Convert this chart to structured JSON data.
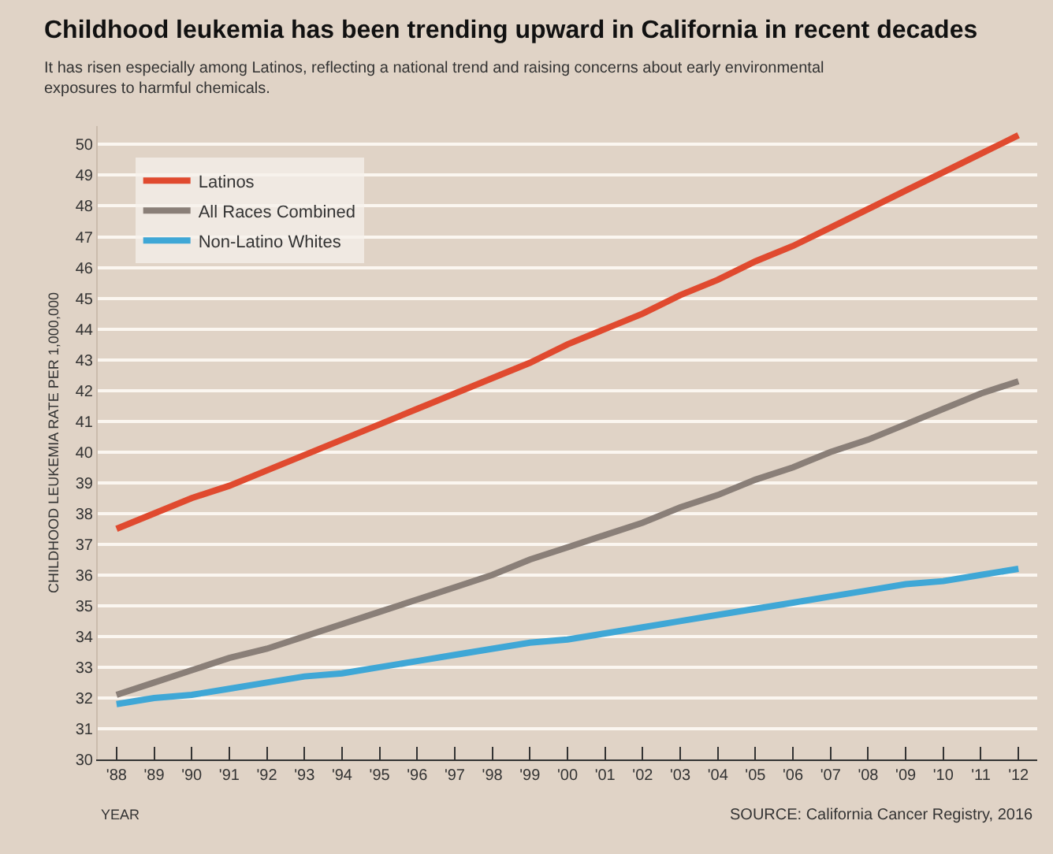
{
  "chart_data": {
    "type": "line",
    "title": "Childhood leukemia has been trending upward in California in recent decades",
    "subtitle": "It has risen especially among Latinos, reflecting a national trend and raising concerns about early environmental exposures to harmful chemicals.",
    "xlabel": "YEAR",
    "ylabel": "CHILDHOOD LEUKEMIA RATE PER 1,000,000",
    "annotations": [
      "SOURCE: California Cancer Registry, 2016"
    ],
    "x": [
      1988,
      1989,
      1990,
      1991,
      1992,
      1993,
      1994,
      1995,
      1996,
      1997,
      1998,
      1999,
      2000,
      2001,
      2002,
      2003,
      2004,
      2005,
      2006,
      2007,
      2008,
      2009,
      2010,
      2011,
      2012
    ],
    "series": [
      {
        "name": "Latinos",
        "color": "#e04a2f",
        "values": [
          37.5,
          38.0,
          38.5,
          38.9,
          39.4,
          39.9,
          40.4,
          40.9,
          41.4,
          41.9,
          42.4,
          42.9,
          43.5,
          44.0,
          44.5,
          45.1,
          45.6,
          46.2,
          46.7,
          47.3,
          47.9,
          48.5,
          49.1,
          49.7,
          50.3
        ]
      },
      {
        "name": "All Races Combined",
        "color": "#8a7f78",
        "values": [
          32.1,
          32.5,
          32.9,
          33.3,
          33.6,
          34.0,
          34.4,
          34.8,
          35.2,
          35.6,
          36.0,
          36.5,
          36.9,
          37.3,
          37.7,
          38.2,
          38.6,
          39.1,
          39.5,
          40.0,
          40.4,
          40.9,
          41.4,
          41.9,
          42.3
        ]
      },
      {
        "name": "Non-Latino Whites",
        "color": "#3fa7d6",
        "values": [
          31.8,
          32.0,
          32.1,
          32.3,
          32.5,
          32.7,
          32.8,
          33.0,
          33.2,
          33.4,
          33.6,
          33.8,
          33.9,
          34.1,
          34.3,
          34.5,
          34.7,
          34.9,
          35.1,
          35.3,
          35.5,
          35.7,
          35.8,
          36.0,
          36.2
        ]
      }
    ],
    "xlim": [
      1987.5,
      2012.5
    ],
    "xticks": [
      {
        "value": 1988,
        "label": "'88"
      },
      {
        "value": 1989,
        "label": "'89"
      },
      {
        "value": 1990,
        "label": "'90"
      },
      {
        "value": 1991,
        "label": "'91"
      },
      {
        "value": 1992,
        "label": "'92"
      },
      {
        "value": 1993,
        "label": "'93"
      },
      {
        "value": 1994,
        "label": "'94"
      },
      {
        "value": 1995,
        "label": "'95"
      },
      {
        "value": 1996,
        "label": "'96"
      },
      {
        "value": 1997,
        "label": "'97"
      },
      {
        "value": 1998,
        "label": "'98"
      },
      {
        "value": 1999,
        "label": "'99"
      },
      {
        "value": 2000,
        "label": "'00"
      },
      {
        "value": 2001,
        "label": "'01"
      },
      {
        "value": 2002,
        "label": "'02"
      },
      {
        "value": 2003,
        "label": "'03"
      },
      {
        "value": 2004,
        "label": "'04"
      },
      {
        "value": 2005,
        "label": "'05"
      },
      {
        "value": 2006,
        "label": "'06"
      },
      {
        "value": 2007,
        "label": "'07"
      },
      {
        "value": 2008,
        "label": "'08"
      },
      {
        "value": 2009,
        "label": "'09"
      },
      {
        "value": 2010,
        "label": "'10"
      },
      {
        "value": 2011,
        "label": "'11"
      },
      {
        "value": 2012,
        "label": "'12"
      }
    ],
    "ylim": [
      30,
      50.6
    ],
    "yticks": [
      30,
      31,
      32,
      33,
      34,
      35,
      36,
      37,
      38,
      39,
      40,
      41,
      42,
      43,
      44,
      45,
      46,
      47,
      48,
      49,
      50
    ],
    "grid": "y",
    "legend": "top left",
    "marker": "none",
    "line_style": "solid"
  }
}
